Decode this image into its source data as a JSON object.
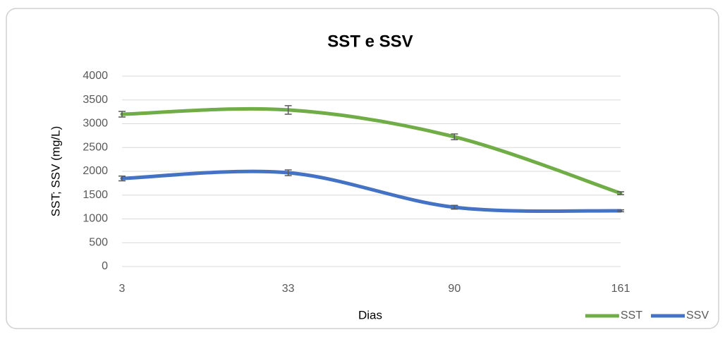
{
  "chart_data": {
    "type": "line",
    "title": "SST e SSV",
    "x_label": "Dias",
    "y_label": "SST; SSV (mg/L)",
    "categories": [
      "3",
      "33",
      "90",
      "161"
    ],
    "series": [
      {
        "name": "SST",
        "color": "#70ad47",
        "values": [
          3200,
          3290,
          2725,
          1540
        ],
        "errors": [
          60,
          90,
          60,
          30
        ]
      },
      {
        "name": "SSV",
        "color": "#4472c4",
        "values": [
          1850,
          1970,
          1245,
          1170
        ],
        "errors": [
          50,
          60,
          40,
          20
        ]
      }
    ],
    "ylim": [
      0,
      4000
    ],
    "yticks": [
      0,
      500,
      1000,
      1500,
      2000,
      2500,
      3000,
      3500,
      4000
    ],
    "grid": true,
    "smooth": true,
    "legend": "bottom-right"
  }
}
